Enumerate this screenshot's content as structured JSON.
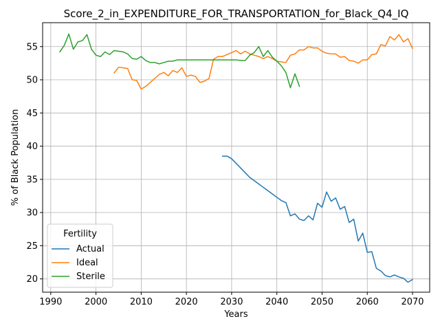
{
  "chart_data": {
    "type": "line",
    "title": "Score_2_in_EXPENDITURE_FOR_TRANSPORTATION_for_Black_Q4_IQ",
    "xlabel": "Years",
    "ylabel": "% of Black Population",
    "xlim": [
      1988.2,
      2073.8
    ],
    "ylim": [
      18.0,
      58.6
    ],
    "xticks": [
      1990,
      2000,
      2010,
      2020,
      2030,
      2040,
      2050,
      2060,
      2070
    ],
    "yticks": [
      20,
      25,
      30,
      35,
      40,
      45,
      50,
      55
    ],
    "grid": true,
    "legend": {
      "title": "Fertility",
      "placement": "lower-left"
    },
    "series": [
      {
        "name": "Actual",
        "color": "#1f77b4",
        "x": [
          2028,
          2029,
          2030,
          2031,
          2032,
          2033,
          2034,
          2035,
          2036,
          2037,
          2038,
          2039,
          2040,
          2041,
          2042,
          2043,
          2044,
          2045,
          2046,
          2047,
          2048,
          2049,
          2050,
          2051,
          2052,
          2053,
          2054,
          2055,
          2056,
          2057,
          2058,
          2059,
          2060,
          2061,
          2062,
          2063,
          2064,
          2065,
          2066,
          2067,
          2068,
          2069,
          2070
        ],
        "y": [
          38.5,
          38.5,
          38.1,
          37.4,
          36.7,
          36.0,
          35.3,
          34.8,
          34.3,
          33.8,
          33.3,
          32.8,
          32.3,
          31.8,
          31.5,
          29.5,
          29.8,
          29.0,
          28.8,
          29.5,
          28.9,
          31.4,
          30.8,
          33.1,
          31.7,
          32.2,
          30.5,
          30.9,
          28.5,
          29.0,
          25.7,
          26.9,
          24.0,
          24.1,
          21.6,
          21.2,
          20.5,
          20.3,
          20.6,
          20.3,
          20.1,
          19.5,
          19.9
        ]
      },
      {
        "name": "Ideal",
        "color": "#ff7f0e",
        "x": [
          2004,
          2005,
          2006,
          2007,
          2008,
          2009,
          2010,
          2011,
          2012,
          2013,
          2014,
          2015,
          2016,
          2017,
          2018,
          2019,
          2020,
          2021,
          2022,
          2023,
          2024,
          2025,
          2026,
          2027,
          2028,
          2029,
          2030,
          2031,
          2032,
          2033,
          2034,
          2035,
          2036,
          2037,
          2038,
          2039,
          2040,
          2041,
          2042,
          2043,
          2044,
          2045,
          2046,
          2047,
          2048,
          2049,
          2050,
          2051,
          2052,
          2053,
          2054,
          2055,
          2056,
          2057,
          2058,
          2059,
          2060,
          2061,
          2062,
          2063,
          2064,
          2065,
          2066,
          2067,
          2068,
          2069,
          2070
        ],
        "y": [
          51.0,
          51.9,
          51.8,
          51.7,
          50.0,
          49.9,
          48.6,
          49.0,
          49.6,
          50.2,
          50.8,
          51.1,
          50.6,
          51.4,
          51.1,
          51.8,
          50.5,
          50.7,
          50.5,
          49.6,
          49.8,
          50.2,
          53.1,
          53.5,
          53.5,
          53.8,
          54.1,
          54.4,
          53.9,
          54.3,
          53.9,
          53.7,
          53.5,
          53.2,
          53.5,
          53.2,
          52.8,
          52.7,
          52.6,
          53.7,
          53.9,
          54.5,
          54.5,
          55.0,
          54.8,
          54.8,
          54.3,
          54.0,
          53.9,
          53.9,
          53.4,
          53.5,
          52.9,
          52.8,
          52.5,
          53.0,
          53.0,
          53.8,
          53.9,
          55.3,
          55.1,
          56.5,
          56.0,
          56.8,
          55.7,
          56.2,
          54.7
        ]
      },
      {
        "name": "Sterile",
        "color": "#2ca02c",
        "x": [
          1992,
          1993,
          1994,
          1995,
          1996,
          1997,
          1998,
          1999,
          2000,
          2001,
          2002,
          2003,
          2004,
          2005,
          2006,
          2007,
          2008,
          2009,
          2010,
          2011,
          2012,
          2013,
          2014,
          2015,
          2016,
          2017,
          2018,
          2019,
          2020,
          2021,
          2022,
          2023,
          2024,
          2025,
          2026,
          2027,
          2028,
          2029,
          2030,
          2031,
          2032,
          2033,
          2034,
          2035,
          2036,
          2037,
          2038,
          2039,
          2040,
          2041,
          2042,
          2043,
          2044,
          2045
        ],
        "y": [
          54.2,
          55.2,
          56.9,
          54.6,
          55.7,
          55.9,
          56.8,
          54.6,
          53.7,
          53.5,
          54.2,
          53.8,
          54.4,
          54.3,
          54.2,
          53.9,
          53.2,
          53.1,
          53.5,
          52.9,
          52.6,
          52.6,
          52.4,
          52.6,
          52.8,
          52.8,
          53.0,
          53.0,
          53.0,
          53.0,
          53.0,
          53.0,
          53.0,
          53.0,
          53.0,
          53.0,
          53.0,
          53.0,
          53.0,
          53.0,
          52.9,
          52.9,
          53.7,
          54.1,
          55.0,
          53.5,
          54.4,
          53.4,
          52.8,
          52.1,
          51.1,
          48.8,
          50.9,
          49.0
        ]
      }
    ]
  }
}
